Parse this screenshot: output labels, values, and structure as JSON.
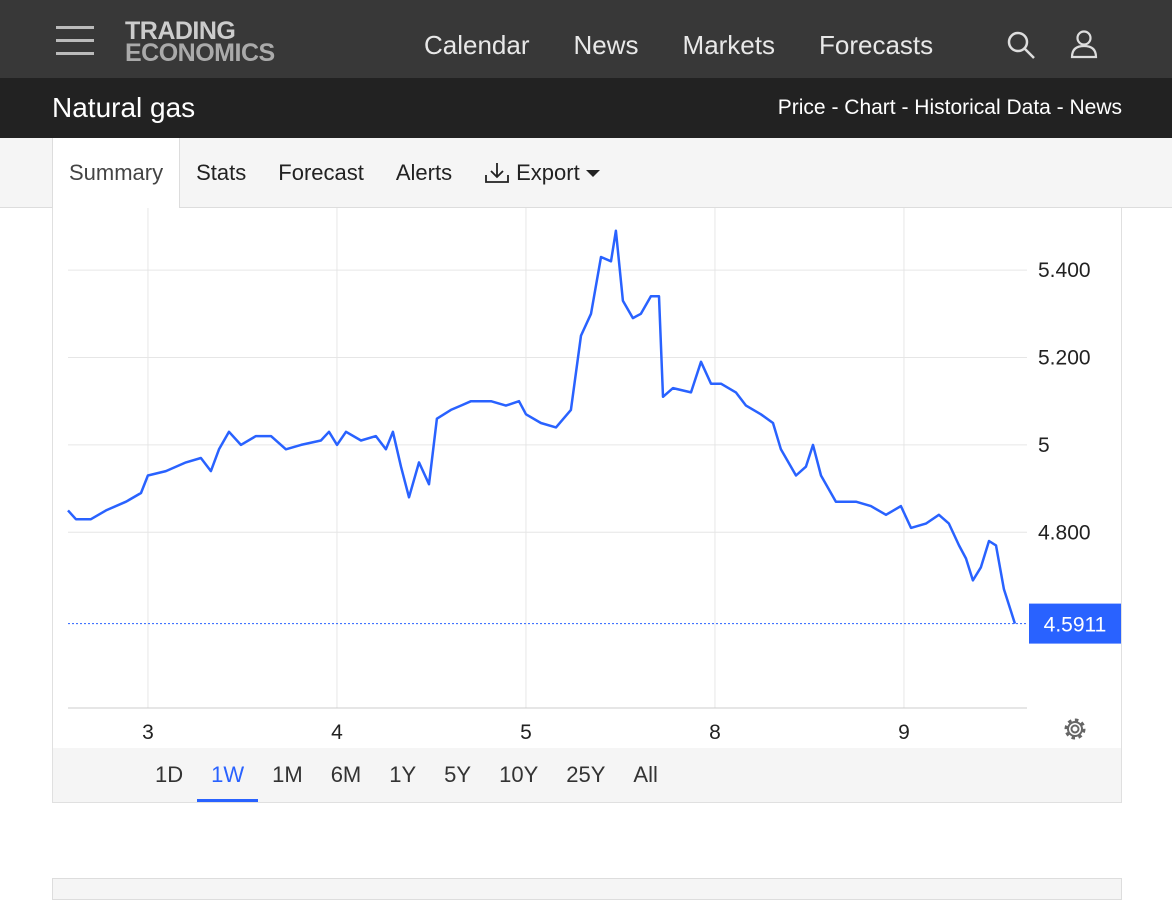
{
  "header": {
    "logo": [
      "TRADING",
      "ECONOMICS"
    ],
    "nav": [
      "Calendar",
      "News",
      "Markets",
      "Forecasts"
    ]
  },
  "subheader": {
    "title": "Natural gas",
    "links": "Price - Chart - Historical Data - News"
  },
  "tabs": [
    "Summary",
    "Stats",
    "Forecast",
    "Alerts",
    "Export"
  ],
  "active_tab": 0,
  "chart_data": {
    "type": "line",
    "color": "#2962ff",
    "x": [
      -0.423,
      -0.381,
      -0.302,
      -0.222,
      -0.116,
      -0.037,
      0,
      0.095,
      0.201,
      0.28,
      0.333,
      0.376,
      0.429,
      0.492,
      0.571,
      0.651,
      0.73,
      0.81,
      0.915,
      0.958,
      1,
      1.048,
      1.127,
      1.206,
      1.259,
      1.296,
      1.339,
      1.381,
      1.434,
      1.487,
      1.529,
      1.603,
      1.656,
      1.709,
      1.815,
      1.894,
      1.963,
      2,
      2.079,
      2.159,
      2.238,
      2.291,
      2.344,
      2.397,
      2.45,
      2.476,
      2.513,
      2.566,
      2.608,
      2.661,
      2.704,
      2.725,
      2.778,
      2.873,
      2.926,
      2.979,
      3.032,
      3.111,
      3.164,
      3.243,
      3.307,
      3.349,
      3.429,
      3.481,
      3.519,
      3.561,
      3.64,
      3.746,
      3.825,
      3.905,
      3.984,
      4.037,
      4.116,
      4.185,
      4.238,
      4.291,
      4.328,
      4.365,
      4.407,
      4.45,
      4.487,
      4.529,
      4.566,
      4.587
    ],
    "values": [
      4.85,
      4.83,
      4.83,
      4.85,
      4.87,
      4.89,
      4.93,
      4.94,
      4.96,
      4.97,
      4.94,
      4.99,
      5.03,
      5.0,
      5.02,
      5.02,
      4.99,
      5.0,
      5.01,
      5.03,
      5.0,
      5.03,
      5.01,
      5.02,
      4.99,
      5.03,
      4.95,
      4.88,
      4.96,
      4.91,
      5.06,
      5.08,
      5.09,
      5.1,
      5.1,
      5.09,
      5.1,
      5.07,
      5.05,
      5.04,
      5.08,
      5.25,
      5.3,
      5.43,
      5.42,
      5.49,
      5.33,
      5.29,
      5.3,
      5.34,
      5.34,
      5.11,
      5.13,
      5.12,
      5.19,
      5.14,
      5.14,
      5.12,
      5.09,
      5.07,
      5.05,
      4.99,
      4.93,
      4.95,
      5.0,
      4.93,
      4.87,
      4.87,
      4.86,
      4.84,
      4.86,
      4.81,
      4.82,
      4.84,
      4.82,
      4.77,
      4.74,
      4.69,
      4.72,
      4.78,
      4.77,
      4.67,
      4.62,
      4.5911
    ],
    "xlim": [
      -0.423,
      4.651
    ],
    "xticks": [
      {
        "value": 0,
        "label": "3"
      },
      {
        "value": 1,
        "label": "4"
      },
      {
        "value": 2,
        "label": "5"
      },
      {
        "value": 3,
        "label": "8"
      },
      {
        "value": 4,
        "label": "9"
      }
    ],
    "ylim": [
      4.398,
      5.542
    ],
    "yticks": [
      {
        "value": 4.8,
        "label": "4.800"
      },
      5,
      {
        "value": 5.2,
        "label": "5.200"
      },
      {
        "value": 5.4,
        "label": "5.400"
      }
    ],
    "grid": true
  },
  "ranges": [
    "1D",
    "1W",
    "1M",
    "6M",
    "1Y",
    "5Y",
    "10Y",
    "25Y",
    "All"
  ],
  "active_range": 1
}
